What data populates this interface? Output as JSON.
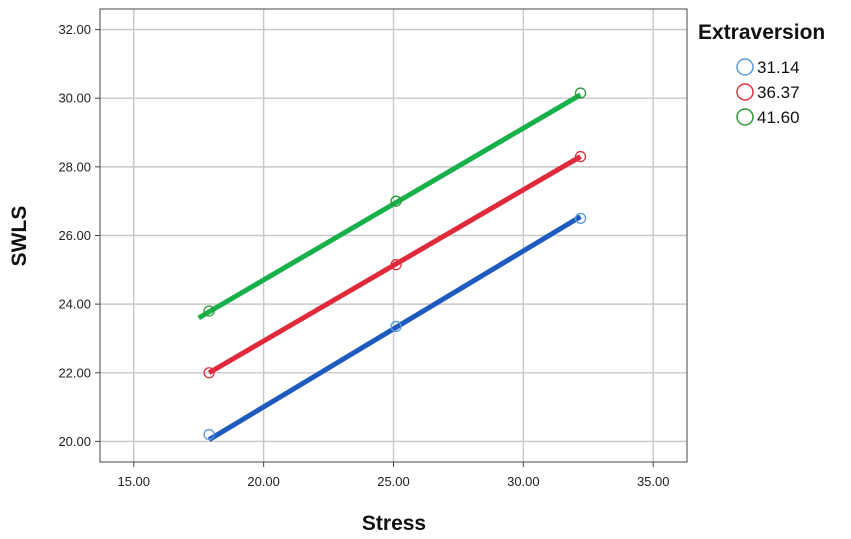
{
  "chart_data": {
    "type": "scatter",
    "xlabel": "Stress",
    "ylabel": "SWLS",
    "xlim": [
      13.7,
      36.3
    ],
    "ylim": [
      19.4,
      32.6
    ],
    "x_ticks": [
      "15.00",
      "20.00",
      "25.00",
      "30.00",
      "35.00"
    ],
    "y_ticks": [
      "20.00",
      "22.00",
      "24.00",
      "26.00",
      "28.00",
      "30.00",
      "32.00"
    ],
    "grid": true,
    "legend": {
      "title": "Extraversion",
      "position": "right"
    },
    "series": [
      {
        "name": "31.14",
        "marker_color": "#5B9BD5",
        "line_color": "#1F5BBF",
        "points": [
          [
            17.9,
            20.2
          ],
          [
            25.1,
            23.35
          ],
          [
            32.2,
            26.5
          ]
        ],
        "fit": [
          [
            17.9,
            20.05
          ],
          [
            32.2,
            26.55
          ]
        ]
      },
      {
        "name": "36.37",
        "marker_color": "#E03040",
        "line_color": "#E02A3C",
        "points": [
          [
            17.9,
            22.0
          ],
          [
            25.1,
            25.15
          ],
          [
            32.2,
            28.3
          ]
        ],
        "fit": [
          [
            17.9,
            22.0
          ],
          [
            32.2,
            28.3
          ]
        ]
      },
      {
        "name": "41.60",
        "marker_color": "#2E9A3A",
        "line_color": "#17B04A",
        "points": [
          [
            17.9,
            23.8
          ],
          [
            25.1,
            27.0
          ],
          [
            32.2,
            30.15
          ]
        ],
        "fit": [
          [
            17.5,
            23.6
          ],
          [
            32.2,
            30.1
          ]
        ]
      }
    ]
  }
}
